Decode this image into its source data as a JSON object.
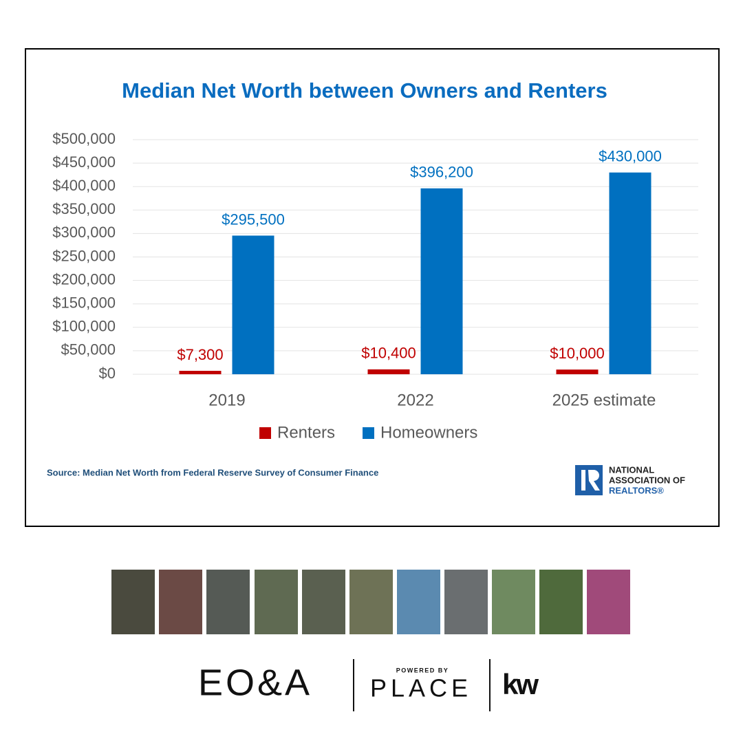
{
  "chart_data": {
    "type": "bar",
    "title": "Median Net Worth between Owners and Renters",
    "categories": [
      "2019",
      "2022",
      "2025 estimate"
    ],
    "series": [
      {
        "name": "Renters",
        "color": "#c00000",
        "values": [
          7300,
          10400,
          10000
        ],
        "value_labels": [
          "$7,300",
          "$10,400",
          "$10,000"
        ]
      },
      {
        "name": "Homeowners",
        "color": "#0070c0",
        "values": [
          295500,
          396200,
          430000
        ],
        "value_labels": [
          "$295,500",
          "$396,200",
          "$430,000"
        ]
      }
    ],
    "ylim": [
      0,
      500000
    ],
    "yticks": [
      {
        "value": 0,
        "label": "$0"
      },
      {
        "value": 50000,
        "label": "$50,000"
      },
      {
        "value": 100000,
        "label": "$100,000"
      },
      {
        "value": 150000,
        "label": "$150,000"
      },
      {
        "value": 200000,
        "label": "$200,000"
      },
      {
        "value": 250000,
        "label": "$250,000"
      },
      {
        "value": 300000,
        "label": "$300,000"
      },
      {
        "value": 350000,
        "label": "$350,000"
      },
      {
        "value": 400000,
        "label": "$400,000"
      },
      {
        "value": 450000,
        "label": "$450,000"
      },
      {
        "value": 500000,
        "label": "$500,000"
      }
    ],
    "grid": true,
    "legend": "bottom",
    "source": "Source: Median Net Worth from Federal Reserve Survey of Consumer Finance"
  },
  "logo": {
    "line1": "NATIONAL",
    "line2": "ASSOCIATION OF",
    "line3": "REALTORS®"
  },
  "footer": {
    "brand": "EO&A",
    "powered": "POWERED BY",
    "place": "PLACE",
    "kw": "kw"
  }
}
